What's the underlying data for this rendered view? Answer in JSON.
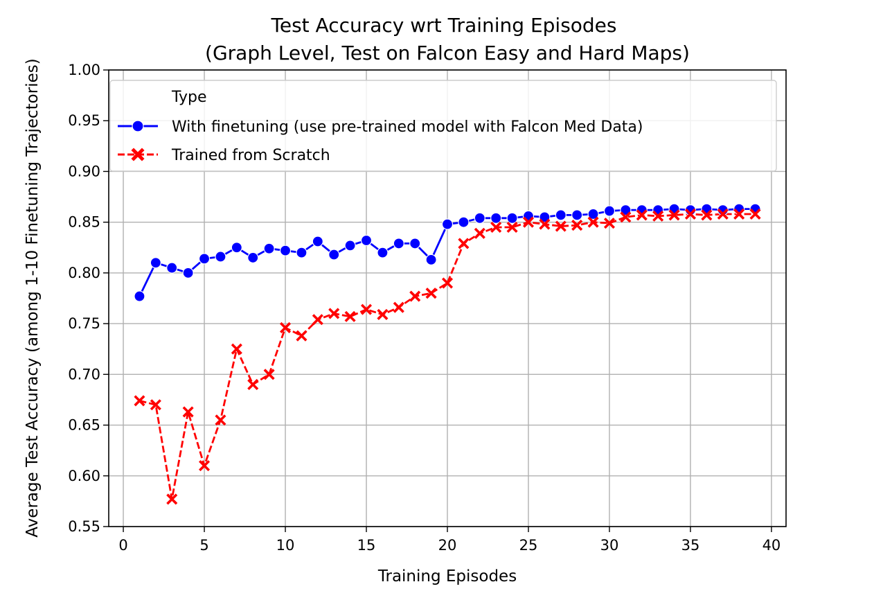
{
  "chart_data": {
    "type": "line",
    "title": "Test Accuracy wrt Training Episodes",
    "subtitle": "(Graph Level, Test on Falcon Easy and Hard Maps)",
    "xlabel": "Training Episodes",
    "ylabel": "Average Test Accuracy (among 1-10 Finetuning Trajectories)",
    "xlim": [
      -0.9,
      40.9
    ],
    "ylim": [
      0.55,
      1.0
    ],
    "xticks": [
      "0",
      "5",
      "10",
      "15",
      "20",
      "25",
      "30",
      "35",
      "40"
    ],
    "yticks": [
      "0.55",
      "0.60",
      "0.65",
      "0.70",
      "0.75",
      "0.80",
      "0.85",
      "0.90",
      "0.95",
      "1.00"
    ],
    "grid": true,
    "legend": {
      "title": "Type",
      "placement": "top"
    },
    "x": [
      1,
      2,
      3,
      4,
      5,
      6,
      7,
      8,
      9,
      10,
      11,
      12,
      13,
      14,
      15,
      16,
      17,
      18,
      19,
      20,
      21,
      22,
      23,
      24,
      25,
      26,
      27,
      28,
      29,
      30,
      31,
      32,
      33,
      34,
      35,
      36,
      37,
      38,
      39
    ],
    "series": [
      {
        "name": "With finetuning (use pre-trained model with Falcon Med Data)",
        "color": "#0000ff",
        "marker": "circle",
        "linestyle": "solid",
        "values": [
          0.777,
          0.81,
          0.805,
          0.8,
          0.814,
          0.816,
          0.825,
          0.815,
          0.824,
          0.822,
          0.82,
          0.831,
          0.818,
          0.827,
          0.832,
          0.82,
          0.829,
          0.829,
          0.813,
          0.848,
          0.85,
          0.854,
          0.854,
          0.854,
          0.856,
          0.855,
          0.857,
          0.857,
          0.858,
          0.861,
          0.862,
          0.862,
          0.862,
          0.863,
          0.862,
          0.863,
          0.862,
          0.863,
          0.863
        ]
      },
      {
        "name": "Trained from Scratch",
        "color": "#ff0000",
        "marker": "x",
        "linestyle": "dashed",
        "values": [
          0.674,
          0.67,
          0.577,
          0.663,
          0.61,
          0.655,
          0.725,
          0.69,
          0.7,
          0.746,
          0.738,
          0.754,
          0.76,
          0.757,
          0.764,
          0.759,
          0.766,
          0.777,
          0.78,
          0.79,
          0.829,
          0.839,
          0.845,
          0.845,
          0.85,
          0.848,
          0.846,
          0.847,
          0.85,
          0.849,
          0.855,
          0.857,
          0.856,
          0.857,
          0.858,
          0.857,
          0.858,
          0.858,
          0.858
        ]
      }
    ]
  }
}
